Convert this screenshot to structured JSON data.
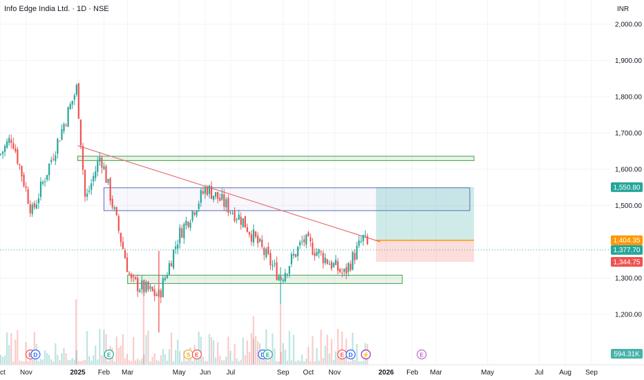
{
  "header": {
    "title": "Info Edge India Ltd. · 1D · NSE",
    "currency": "INR"
  },
  "colors": {
    "up": "#26a69a",
    "down": "#ef5350",
    "trendline": "#e57373",
    "entry": "#ff9800",
    "target_zone": "#26a69a",
    "stop_zone": "#ef5350",
    "supply_zone": "#5c6bc0",
    "demand_zone": "#43a047"
  },
  "chart_data": {
    "type": "candlestick",
    "x_tick_labels": [
      "Oct",
      "Nov",
      "2025",
      "Feb",
      "Mar",
      "May",
      "Jun",
      "Jul",
      "Sep",
      "Oct",
      "Nov",
      "2026",
      "Feb",
      "Mar",
      "May",
      "Jul",
      "Aug",
      "Sep"
    ],
    "y_tick_labels": [
      "2,000.00",
      "1,900.00",
      "1,800.00",
      "1,700.00",
      "1,600.00",
      "1,500.00",
      "1,300.00",
      "1,200.00"
    ],
    "ylim": [
      1140,
      2020
    ],
    "price_labels": {
      "target": "1,550.80",
      "entry": "1,404.35",
      "last": "1,377.70",
      "stop": "1,344.75",
      "volume": "594.31K"
    },
    "key_points": [
      {
        "date": "2024-10-01",
        "price": 1640
      },
      {
        "date": "2024-10-15",
        "price": 1690
      },
      {
        "date": "2024-11-08",
        "price": 1480
      },
      {
        "date": "2024-12-31",
        "price": 1825
      },
      {
        "date": "2025-01-10",
        "price": 1510
      },
      {
        "date": "2025-01-28",
        "price": 1640
      },
      {
        "date": "2025-03-05",
        "price": 1290
      },
      {
        "date": "2025-04-07",
        "price": 1250
      },
      {
        "date": "2025-05-01",
        "price": 1420
      },
      {
        "date": "2025-06-02",
        "price": 1550
      },
      {
        "date": "2025-07-15",
        "price": 1460
      },
      {
        "date": "2025-08-29",
        "price": 1300
      },
      {
        "date": "2025-09-25",
        "price": 1405
      },
      {
        "date": "2025-11-12",
        "price": 1310
      },
      {
        "date": "2025-12-05",
        "price": 1410
      },
      {
        "date": "2025-12-12",
        "price": 1378
      }
    ],
    "drawings": {
      "trendline": {
        "start": [
          "2025-01-01",
          1665
        ],
        "end": [
          "2025-12-25",
          1400
        ]
      },
      "resistance_zone": {
        "start": "2025-01-01",
        "end": "2026-04-15",
        "low": 1624,
        "high": 1636
      },
      "supply_zone": {
        "start": "2025-02-01",
        "end": "2026-04-10",
        "low": 1486,
        "high": 1549
      },
      "demand_zone": {
        "start": "2025-03-01",
        "end": "2026-01-20",
        "low": 1285,
        "high": 1308
      },
      "long_position": {
        "start": "2025-12-20",
        "end": "2026-04-15",
        "target": 1550.8,
        "entry": 1404.35,
        "stop": 1344.75
      }
    },
    "events": [
      {
        "date": "2024-11-06",
        "label": "E",
        "color": "#ef5350"
      },
      {
        "date": "2024-11-12",
        "label": "D",
        "color": "#2962ff"
      },
      {
        "date": "2025-02-07",
        "label": "E",
        "color": "#26a69a"
      },
      {
        "date": "2025-05-12",
        "label": "S",
        "color": "#f9a825"
      },
      {
        "date": "2025-05-22",
        "label": "E",
        "color": "#ef5350"
      },
      {
        "date": "2025-08-08",
        "label": "D",
        "color": "#2962ff"
      },
      {
        "date": "2025-08-14",
        "label": "E",
        "color": "#26a69a"
      },
      {
        "date": "2025-11-10",
        "label": "E",
        "color": "#ef5350"
      },
      {
        "date": "2025-11-20",
        "label": "D",
        "color": "#2962ff"
      },
      {
        "date": "2025-12-08",
        "label": "⚡",
        "color": "#9c27b0"
      },
      {
        "date": "2026-02-12",
        "label": "E",
        "color": "#ba68c8"
      }
    ]
  }
}
